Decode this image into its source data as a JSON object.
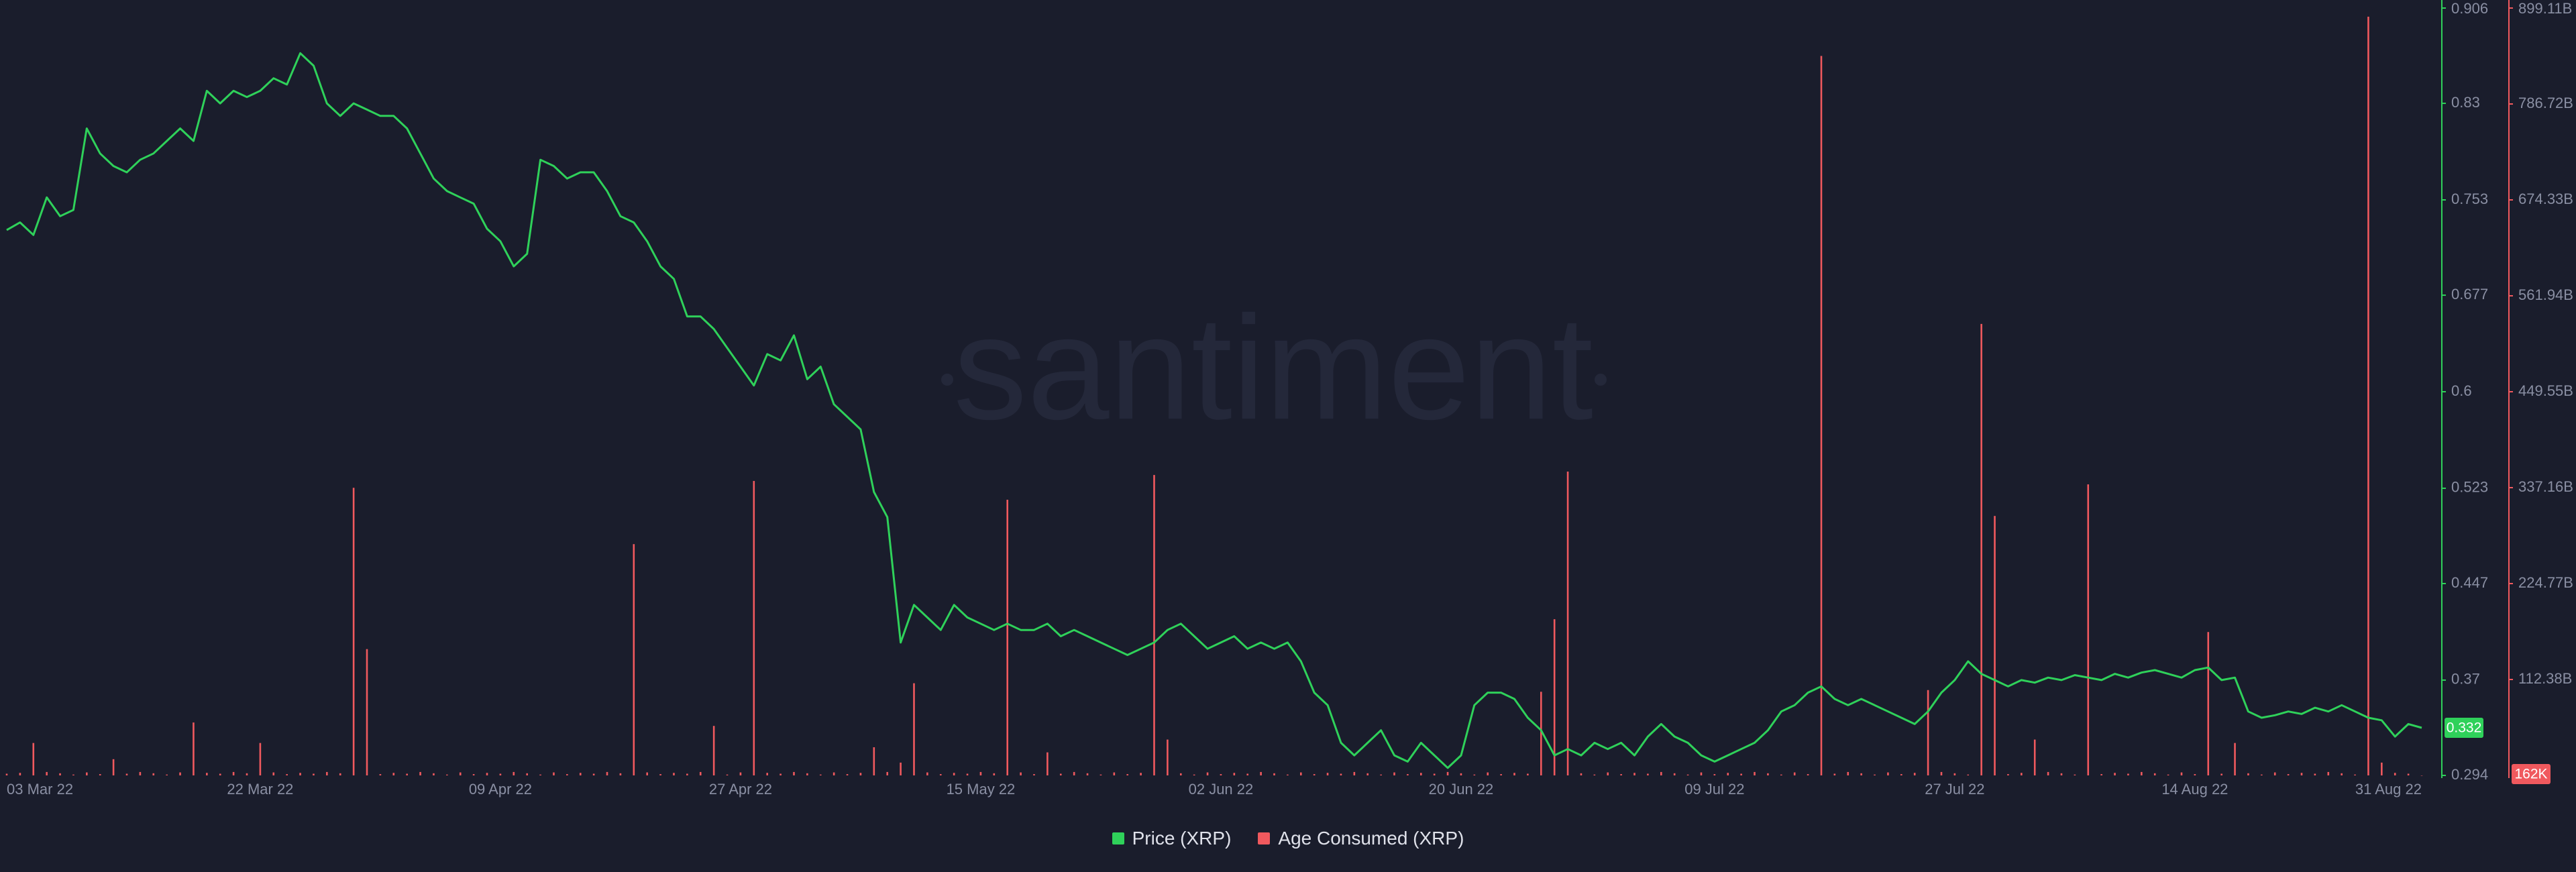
{
  "chart_data": {
    "type": "line",
    "watermark": "santiment",
    "categories": [
      "03 Mar 22",
      null,
      null,
      null,
      null,
      null,
      null,
      null,
      null,
      null,
      null,
      null,
      null,
      null,
      null,
      null,
      null,
      null,
      null,
      "22 Mar 22",
      null,
      null,
      null,
      null,
      null,
      null,
      null,
      null,
      null,
      null,
      null,
      null,
      null,
      null,
      null,
      null,
      null,
      "09 Apr 22",
      null,
      null,
      null,
      null,
      null,
      null,
      null,
      null,
      null,
      null,
      null,
      null,
      null,
      null,
      null,
      null,
      null,
      "27 Apr 22",
      null,
      null,
      null,
      null,
      null,
      null,
      null,
      null,
      null,
      null,
      null,
      null,
      null,
      null,
      null,
      null,
      null,
      "15 May 22",
      null,
      null,
      null,
      null,
      null,
      null,
      null,
      null,
      null,
      null,
      null,
      null,
      null,
      null,
      null,
      null,
      null,
      "02 Jun 22",
      null,
      null,
      null,
      null,
      null,
      null,
      null,
      null,
      null,
      null,
      null,
      null,
      null,
      null,
      null,
      null,
      null,
      "20 Jun 22",
      null,
      null,
      null,
      null,
      null,
      null,
      null,
      null,
      null,
      null,
      null,
      null,
      null,
      null,
      null,
      null,
      null,
      null,
      "09 Jul 22",
      null,
      null,
      null,
      null,
      null,
      null,
      null,
      null,
      null,
      null,
      null,
      null,
      null,
      null,
      null,
      null,
      null,
      "27 Jul 22",
      null,
      null,
      null,
      null,
      null,
      null,
      null,
      null,
      null,
      null,
      null,
      null,
      null,
      null,
      null,
      null,
      null,
      "14 Aug 22",
      null,
      null,
      null,
      null,
      null,
      null,
      null,
      null,
      null,
      null,
      null,
      null,
      null,
      null,
      null,
      null,
      "31 Aug 22"
    ],
    "series": [
      {
        "name": "Price (XRP)",
        "color": "#2fd15a",
        "type": "line",
        "axis": "y",
        "values": [
          0.729,
          0.735,
          0.725,
          0.755,
          0.74,
          0.745,
          0.81,
          0.79,
          0.78,
          0.775,
          0.785,
          0.79,
          0.8,
          0.81,
          0.8,
          0.84,
          0.83,
          0.84,
          0.835,
          0.84,
          0.85,
          0.845,
          0.87,
          0.86,
          0.83,
          0.82,
          0.83,
          0.825,
          0.82,
          0.82,
          0.81,
          0.79,
          0.77,
          0.76,
          0.755,
          0.75,
          0.73,
          0.72,
          0.7,
          0.71,
          0.785,
          0.78,
          0.77,
          0.775,
          0.775,
          0.76,
          0.74,
          0.735,
          0.72,
          0.7,
          0.69,
          0.66,
          0.66,
          0.65,
          0.635,
          0.62,
          0.605,
          0.63,
          0.625,
          0.645,
          0.61,
          0.62,
          0.59,
          0.58,
          0.57,
          0.52,
          0.5,
          0.4,
          0.43,
          0.42,
          0.41,
          0.43,
          0.42,
          0.415,
          0.41,
          0.415,
          0.41,
          0.41,
          0.415,
          0.405,
          0.41,
          0.405,
          0.4,
          0.395,
          0.39,
          0.395,
          0.4,
          0.41,
          0.415,
          0.405,
          0.395,
          0.4,
          0.405,
          0.395,
          0.4,
          0.395,
          0.4,
          0.385,
          0.36,
          0.35,
          0.32,
          0.31,
          0.32,
          0.33,
          0.31,
          0.305,
          0.32,
          0.31,
          0.3,
          0.31,
          0.35,
          0.36,
          0.36,
          0.355,
          0.34,
          0.33,
          0.31,
          0.315,
          0.31,
          0.32,
          0.315,
          0.32,
          0.31,
          0.325,
          0.335,
          0.325,
          0.32,
          0.31,
          0.305,
          0.31,
          0.315,
          0.32,
          0.33,
          0.345,
          0.35,
          0.36,
          0.365,
          0.355,
          0.35,
          0.355,
          0.35,
          0.345,
          0.34,
          0.335,
          0.345,
          0.36,
          0.37,
          0.385,
          0.375,
          0.37,
          0.365,
          0.37,
          0.368,
          0.372,
          0.37,
          0.374,
          0.372,
          0.37,
          0.375,
          0.372,
          0.376,
          0.378,
          0.375,
          0.372,
          0.378,
          0.38,
          0.37,
          0.372,
          0.345,
          0.34,
          0.342,
          0.345,
          0.343,
          0.348,
          0.345,
          0.35,
          0.345,
          0.34,
          0.338,
          0.325,
          0.335,
          0.332
        ]
      },
      {
        "name": "Age Consumed (XRP)",
        "color": "#f0595e",
        "type": "bar",
        "axis": "y2",
        "values": [
          2000000000.0,
          3000000000.0,
          38000000000.0,
          4000000000.0,
          2500000000.0,
          1000000000.0,
          3500000000.0,
          1500000000.0,
          19000000000.0,
          2000000000.0,
          4000000000.0,
          2500000000.0,
          1000000000.0,
          3500000000.0,
          62000000000.0,
          3000000000.0,
          2000000000.0,
          4000000000.0,
          2500000000.0,
          38000000000.0,
          3500000000.0,
          1500000000.0,
          3000000000.0,
          2000000000.0,
          4000000000.0,
          2500000000.0,
          337000000000.0,
          148000000000.0,
          1500000000.0,
          3000000000.0,
          2000000000.0,
          4000000000.0,
          2500000000.0,
          1000000000.0,
          3500000000.0,
          1500000000.0,
          3000000000.0,
          2000000000.0,
          4000000000.0,
          2500000000.0,
          1000000000.0,
          3500000000.0,
          1500000000.0,
          3000000000.0,
          2000000000.0,
          4000000000.0,
          2500000000.0,
          271000000000.0,
          3500000000.0,
          1500000000.0,
          3000000000.0,
          2000000000.0,
          4000000000.0,
          58000000000.0,
          1000000000.0,
          3500000000.0,
          345000000000.0,
          3000000000.0,
          2000000000.0,
          4000000000.0,
          2500000000.0,
          1000000000.0,
          3500000000.0,
          1500000000.0,
          3000000000.0,
          33000000000.0,
          4000000000.0,
          15000000000.0,
          108000000000.0,
          3500000000.0,
          1500000000.0,
          3000000000.0,
          2000000000.0,
          4000000000.0,
          2500000000.0,
          323000000000.0,
          3500000000.0,
          1500000000.0,
          27000000000.0,
          2000000000.0,
          4000000000.0,
          2500000000.0,
          1000000000.0,
          3500000000.0,
          1500000000.0,
          3000000000.0,
          352000000000.0,
          42000000000.0,
          2500000000.0,
          1000000000.0,
          3500000000.0,
          1500000000.0,
          3000000000.0,
          2000000000.0,
          4000000000.0,
          2500000000.0,
          1000000000.0,
          3500000000.0,
          1500000000.0,
          3000000000.0,
          2000000000.0,
          4000000000.0,
          2500000000.0,
          1000000000.0,
          3500000000.0,
          1500000000.0,
          3000000000.0,
          2000000000.0,
          4000000000.0,
          2500000000.0,
          1000000000.0,
          3500000000.0,
          1500000000.0,
          3000000000.0,
          2000000000.0,
          98000000000.0,
          183000000000.0,
          356000000000.0,
          2500000000.0,
          1000000000.0,
          3500000000.0,
          1500000000.0,
          3000000000.0,
          2000000000.0,
          4000000000.0,
          2500000000.0,
          1000000000.0,
          3500000000.0,
          1500000000.0,
          3000000000.0,
          2000000000.0,
          4000000000.0,
          2500000000.0,
          1000000000.0,
          3500000000.0,
          1500000000.0,
          843000000000.0,
          2000000000.0,
          4000000000.0,
          2500000000.0,
          1000000000.0,
          3500000000.0,
          1500000000.0,
          3000000000.0,
          100000000000.0,
          4000000000.0,
          2500000000.0,
          1000000000.0,
          529000000000.0,
          304000000000.0,
          1500000000.0,
          3000000000.0,
          42000000000.0,
          4000000000.0,
          2500000000.0,
          1000000000.0,
          341000000000.0,
          1500000000.0,
          3000000000.0,
          2000000000.0,
          4000000000.0,
          2500000000.0,
          1000000000.0,
          3500000000.0,
          1500000000.0,
          168000000000.0,
          2000000000.0,
          38000000000.0,
          2500000000.0,
          1000000000.0,
          3500000000.0,
          1500000000.0,
          3000000000.0,
          2000000000.0,
          4000000000.0,
          2500000000.0,
          1000000000.0,
          889000000000.0,
          15000000000.0,
          3000000000.0,
          2000000000.0,
          162000
        ]
      }
    ],
    "ylim": [
      0.294,
      0.906
    ],
    "yticks": [
      0.294,
      0.37,
      0.447,
      0.523,
      0.6,
      0.677,
      0.753,
      0.83,
      0.906
    ],
    "y2lim": [
      0,
      899110000000
    ],
    "y2ticks": [
      {
        "value": 112380000000,
        "label": "112.38B"
      },
      {
        "value": 224770000000,
        "label": "224.77B"
      },
      {
        "value": 337160000000,
        "label": "337.16B"
      },
      {
        "value": 449550000000,
        "label": "449.55B"
      },
      {
        "value": 561940000000,
        "label": "561.94B"
      },
      {
        "value": 674330000000,
        "label": "674.33B"
      },
      {
        "value": 786720000000,
        "label": "786.72B"
      },
      {
        "value": 899110000000,
        "label": "899.11B"
      }
    ],
    "annotations": [
      {
        "value": 0.332,
        "label": "0.332",
        "axis": "y"
      },
      {
        "value": 162000,
        "label": "162K",
        "axis": "y2"
      }
    ],
    "legend": "bottom"
  }
}
